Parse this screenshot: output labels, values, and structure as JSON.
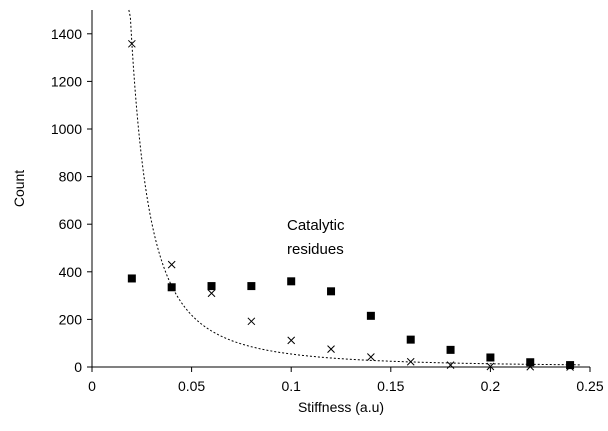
{
  "chart_data": {
    "type": "scatter",
    "title": "",
    "xlabel": "Stiffness (a.u)",
    "ylabel": "Count",
    "xlim": [
      0,
      0.25
    ],
    "ylim": [
      0,
      1500
    ],
    "x_ticks": [
      0,
      0.05,
      0.1,
      0.15,
      0.2,
      0.25
    ],
    "x_tick_labels": [
      "0",
      "0.05",
      "0.1",
      "0.15",
      "0.2",
      "0.25"
    ],
    "y_ticks": [
      0,
      200,
      400,
      600,
      800,
      1000,
      1200,
      1400
    ],
    "y_tick_labels": [
      "0",
      "200",
      "400",
      "600",
      "800",
      "1000",
      "1200",
      "1400"
    ],
    "grid": false,
    "legend": "none",
    "annotation": [
      "Catalytic",
      "residues"
    ],
    "series": [
      {
        "marker": "square",
        "color": "#000000",
        "points": [
          [
            0.02,
            372
          ],
          [
            0.04,
            335
          ],
          [
            0.06,
            340
          ],
          [
            0.08,
            340
          ],
          [
            0.1,
            360
          ],
          [
            0.12,
            318
          ],
          [
            0.14,
            215
          ],
          [
            0.16,
            115
          ],
          [
            0.18,
            72
          ],
          [
            0.2,
            40
          ],
          [
            0.22,
            20
          ],
          [
            0.24,
            8
          ]
        ]
      },
      {
        "marker": "x",
        "color": "#000000",
        "points": [
          [
            0.02,
            1358
          ],
          [
            0.04,
            430
          ],
          [
            0.06,
            310
          ],
          [
            0.08,
            192
          ],
          [
            0.1,
            112
          ],
          [
            0.12,
            75
          ],
          [
            0.14,
            42
          ],
          [
            0.16,
            22
          ],
          [
            0.18,
            8
          ],
          [
            0.2,
            2
          ],
          [
            0.22,
            1
          ],
          [
            0.24,
            0
          ]
        ]
      }
    ],
    "fit_curve": {
      "style": "dotted",
      "color": "#000000",
      "model": "power",
      "a": 0.545,
      "b": -2,
      "x_range": [
        0.0185,
        0.245
      ]
    }
  }
}
